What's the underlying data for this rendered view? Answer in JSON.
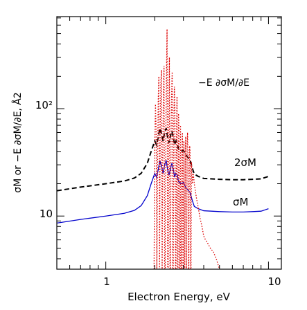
{
  "chart_data": {
    "type": "line",
    "title": "",
    "xlabel": "Electron Energy, eV",
    "ylabel": "σM or −E ∂σM/∂E, Å2",
    "x_scale": "log",
    "y_scale": "log",
    "xlim": [
      0.5,
      12.0
    ],
    "ylim": [
      3.2,
      720
    ],
    "grid": false,
    "x_tick_labels": [
      "1",
      "10"
    ],
    "y_tick_labels": [
      "10",
      "10²"
    ],
    "annotations": [
      {
        "text": "−E ∂σM/∂E",
        "series": "deriv"
      },
      {
        "text": "2σM",
        "series": "double"
      },
      {
        "text": "σM",
        "series": "sigma"
      }
    ],
    "series": [
      {
        "id": "sigma",
        "name": "σM",
        "color": "#0000cc",
        "style": "solid",
        "x": [
          0.5,
          0.7,
          1.0,
          1.3,
          1.5,
          1.65,
          1.8,
          1.9,
          2.0,
          2.05,
          2.1,
          2.15,
          2.2,
          2.25,
          2.3,
          2.35,
          2.4,
          2.45,
          2.5,
          2.55,
          2.6,
          2.65,
          2.7,
          2.75,
          2.8,
          2.9,
          3.0,
          3.1,
          3.2,
          3.3,
          3.4,
          3.5,
          3.7,
          4.0,
          5.0,
          6.0,
          7.0,
          8.0,
          9.0,
          10.0
        ],
        "y": [
          8.6,
          9.3,
          10.0,
          10.6,
          11.3,
          12.5,
          15.5,
          20.0,
          25.0,
          23.0,
          27.0,
          33.0,
          29.0,
          25.0,
          30.0,
          33.0,
          27.0,
          24.0,
          28.0,
          31.0,
          27.0,
          23.0,
          25.0,
          24.0,
          21.0,
          20.0,
          20.5,
          18.5,
          17.5,
          16.5,
          14.0,
          12.3,
          11.7,
          11.2,
          11.0,
          10.9,
          10.9,
          11.0,
          11.1,
          11.7
        ]
      },
      {
        "id": "double",
        "name": "2σM",
        "color": "#000000",
        "style": "dashed",
        "x": [
          0.5,
          0.7,
          1.0,
          1.3,
          1.5,
          1.65,
          1.8,
          1.9,
          2.0,
          2.05,
          2.1,
          2.15,
          2.2,
          2.25,
          2.3,
          2.35,
          2.4,
          2.45,
          2.5,
          2.55,
          2.6,
          2.65,
          2.7,
          2.75,
          2.8,
          2.9,
          3.0,
          3.1,
          3.2,
          3.3,
          3.4,
          3.5,
          3.7,
          4.0,
          5.0,
          6.0,
          7.0,
          8.0,
          9.0,
          10.0
        ],
        "y": [
          17.2,
          18.6,
          20.0,
          21.2,
          22.6,
          25.0,
          31.0,
          40.0,
          50.0,
          46.0,
          54.0,
          66.0,
          58.0,
          50.0,
          60.0,
          66.0,
          54.0,
          48.0,
          56.0,
          62.0,
          54.0,
          46.0,
          50.0,
          48.0,
          42.0,
          40.0,
          41.0,
          37.0,
          35.0,
          33.0,
          28.0,
          24.6,
          23.4,
          22.4,
          22.0,
          21.8,
          21.8,
          22.0,
          22.2,
          23.4
        ]
      },
      {
        "id": "deriv",
        "name": "−E ∂σM/∂E",
        "color": "#dd0000",
        "style": "dotted",
        "x": [
          1.98,
          2.0,
          2.02,
          2.04,
          2.06,
          2.08,
          2.1,
          2.12,
          2.14,
          2.16,
          2.18,
          2.2,
          2.22,
          2.24,
          2.26,
          2.28,
          2.3,
          2.32,
          2.34,
          2.36,
          2.38,
          2.4,
          2.42,
          2.44,
          2.46,
          2.48,
          2.5,
          2.52,
          2.54,
          2.56,
          2.58,
          2.6,
          2.62,
          2.64,
          2.66,
          2.68,
          2.7,
          2.72,
          2.74,
          2.76,
          2.78,
          2.8,
          2.82,
          2.84,
          2.86,
          2.88,
          2.9,
          2.92,
          2.94,
          2.96,
          2.98,
          3.0,
          3.02,
          3.04,
          3.06,
          3.08,
          3.1,
          3.12,
          3.14,
          3.16,
          3.18,
          3.2,
          3.22,
          3.24,
          3.26,
          3.28,
          3.3,
          3.32,
          3.34,
          3.36,
          3.38,
          3.4,
          3.45,
          3.5,
          3.6,
          3.7,
          3.8,
          3.9,
          4.0,
          4.1,
          4.2,
          4.4,
          4.6,
          4.8,
          5.0
        ],
        "y": [
          3.2,
          45,
          110,
          60,
          3.2,
          30,
          120,
          200,
          3.2,
          60,
          180,
          230,
          3.2,
          40,
          150,
          250,
          3.2,
          3.2,
          70,
          200,
          550,
          3.2,
          3.2,
          100,
          300,
          3.2,
          3.2,
          60,
          150,
          220,
          3.2,
          3.2,
          80,
          160,
          100,
          3.2,
          3.2,
          60,
          130,
          3.2,
          3.2,
          90,
          60,
          3.2,
          3.2,
          70,
          3.2,
          3.2,
          40,
          60,
          3.2,
          3.2,
          50,
          3.2,
          3.2,
          40,
          55,
          3.2,
          3.2,
          45,
          60,
          40,
          3.2,
          3.2,
          30,
          45,
          35,
          3.2,
          3.2,
          32,
          28,
          20,
          25,
          20,
          15,
          12,
          9.5,
          8.0,
          6.5,
          6.0,
          5.7,
          5.0,
          4.6,
          3.9,
          3.2
        ]
      }
    ]
  }
}
